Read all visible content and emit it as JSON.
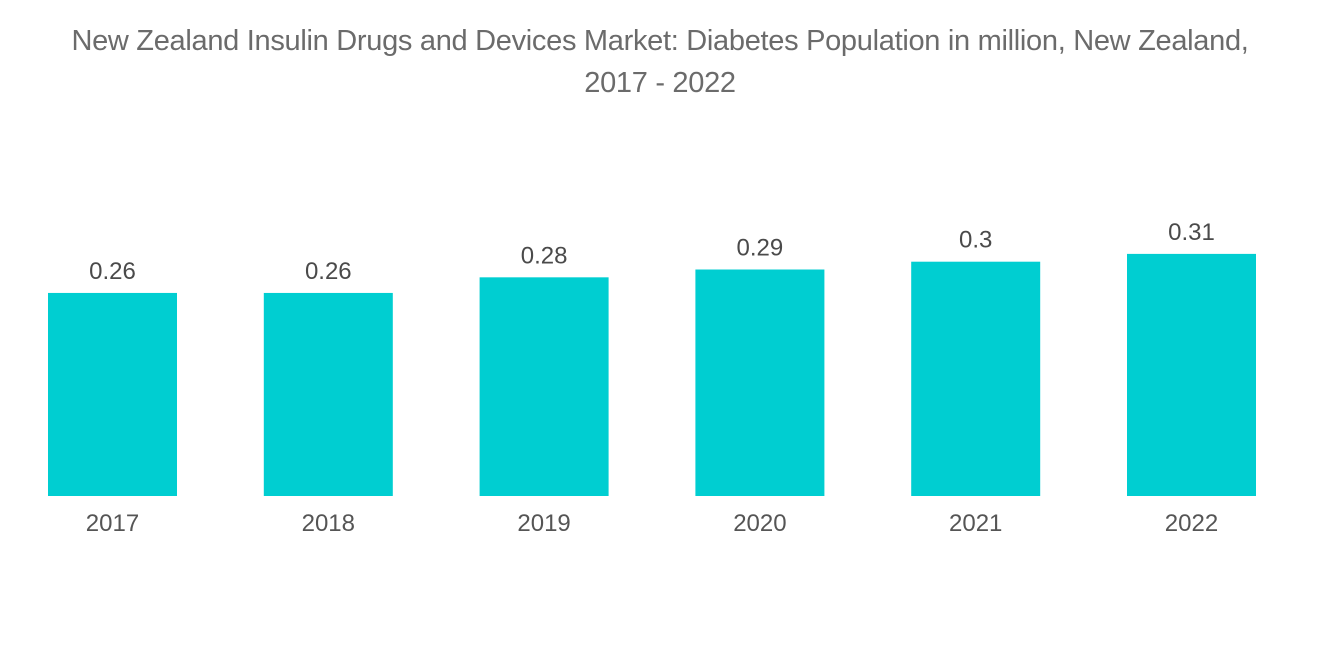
{
  "chart_data": {
    "type": "bar",
    "title": "New Zealand Insulin Drugs and Devices Market: Diabetes Population in million, New Zealand, 2017 - 2022",
    "categories": [
      "2017",
      "2018",
      "2019",
      "2020",
      "2021",
      "2022"
    ],
    "values": [
      0.26,
      0.26,
      0.28,
      0.29,
      0.3,
      0.31
    ],
    "value_labels": [
      "0.26",
      "0.26",
      "0.28",
      "0.29",
      "0.3",
      "0.31"
    ],
    "xlabel": "",
    "ylabel": "",
    "ylim": [
      0,
      0.35
    ],
    "grid": false,
    "legend": "none",
    "bar_color": "#00ced1"
  }
}
